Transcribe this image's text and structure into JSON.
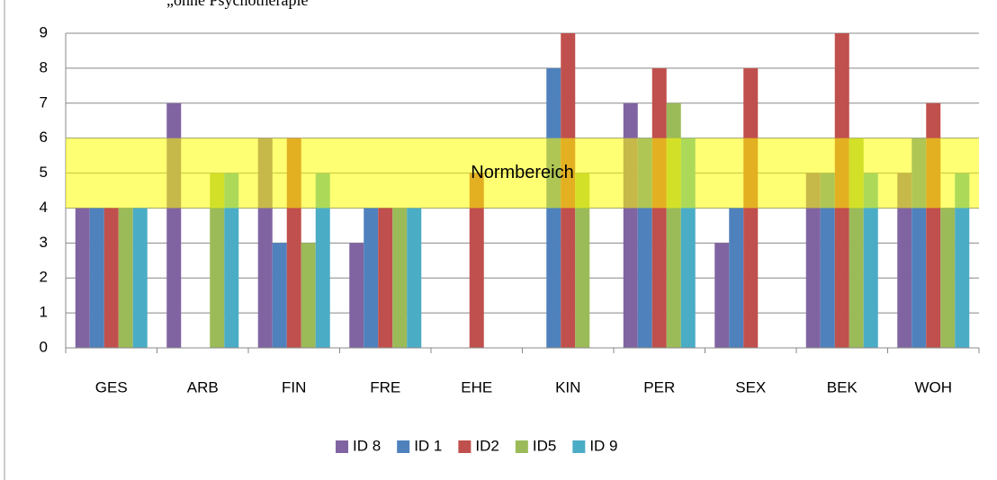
{
  "chart_data": {
    "type": "bar",
    "subtitle": "„ohne Psychotherapie\"",
    "categories": [
      "GES",
      "ARB",
      "FIN",
      "FRE",
      "EHE",
      "KIN",
      "PER",
      "SEX",
      "BEK",
      "WOH"
    ],
    "series": [
      {
        "name": "ID 8",
        "color": "#8064a2",
        "values": [
          4,
          7,
          6,
          3,
          0,
          0,
          7,
          3,
          5,
          5
        ]
      },
      {
        "name": "ID 1",
        "color": "#4f81bd",
        "values": [
          4,
          0,
          3,
          4,
          0,
          8,
          6,
          4,
          5,
          6
        ]
      },
      {
        "name": "ID2",
        "color": "#c0504d",
        "values": [
          4,
          0,
          6,
          4,
          5,
          9,
          8,
          8,
          9,
          7
        ]
      },
      {
        "name": "ID5",
        "color": "#9bbb59",
        "values": [
          4,
          5,
          3,
          4,
          0,
          5,
          7,
          0,
          6,
          4
        ]
      },
      {
        "name": "ID 9",
        "color": "#4bacc6",
        "values": [
          4,
          5,
          5,
          4,
          0,
          0,
          6,
          0,
          5,
          5
        ]
      }
    ],
    "band": {
      "label": "Normbereich",
      "from": 4,
      "to": 6,
      "color": "#ffff00"
    },
    "ylim": [
      0,
      9
    ],
    "yticks": [
      0,
      1,
      2,
      3,
      4,
      5,
      6,
      7,
      8,
      9
    ],
    "grid": true,
    "legend": "bottom"
  }
}
